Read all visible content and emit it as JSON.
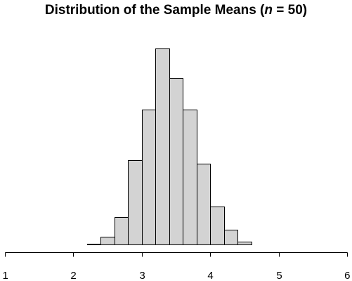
{
  "chart_data": {
    "type": "bar",
    "subtype": "histogram",
    "title_prefix": "Distribution of the Sample Means (",
    "title_var": "n",
    "title_suffix": " = 50)",
    "xlabel": "",
    "ylabel": "",
    "xlim": [
      1,
      6
    ],
    "x_ticks": [
      "1",
      "2",
      "3",
      "4",
      "5",
      "6"
    ],
    "x_tick_values": [
      1,
      2,
      3,
      4,
      5,
      6
    ],
    "y_axis_shown": false,
    "grid": false,
    "bins": [
      {
        "start": 2.2,
        "end": 2.4,
        "count": 1
      },
      {
        "start": 2.4,
        "end": 2.6,
        "count": 9
      },
      {
        "start": 2.6,
        "end": 2.8,
        "count": 31
      },
      {
        "start": 2.8,
        "end": 3.0,
        "count": 95
      },
      {
        "start": 3.0,
        "end": 3.2,
        "count": 152
      },
      {
        "start": 3.2,
        "end": 3.4,
        "count": 221
      },
      {
        "start": 3.4,
        "end": 3.6,
        "count": 188
      },
      {
        "start": 3.6,
        "end": 3.8,
        "count": 152
      },
      {
        "start": 3.8,
        "end": 4.0,
        "count": 91
      },
      {
        "start": 4.0,
        "end": 4.2,
        "count": 43
      },
      {
        "start": 4.2,
        "end": 4.4,
        "count": 17
      },
      {
        "start": 4.4,
        "end": 4.6,
        "count": 3
      }
    ],
    "ylim": [
      0,
      225
    ],
    "bar_color": "#d3d3d3",
    "edge_color": "#000000"
  }
}
